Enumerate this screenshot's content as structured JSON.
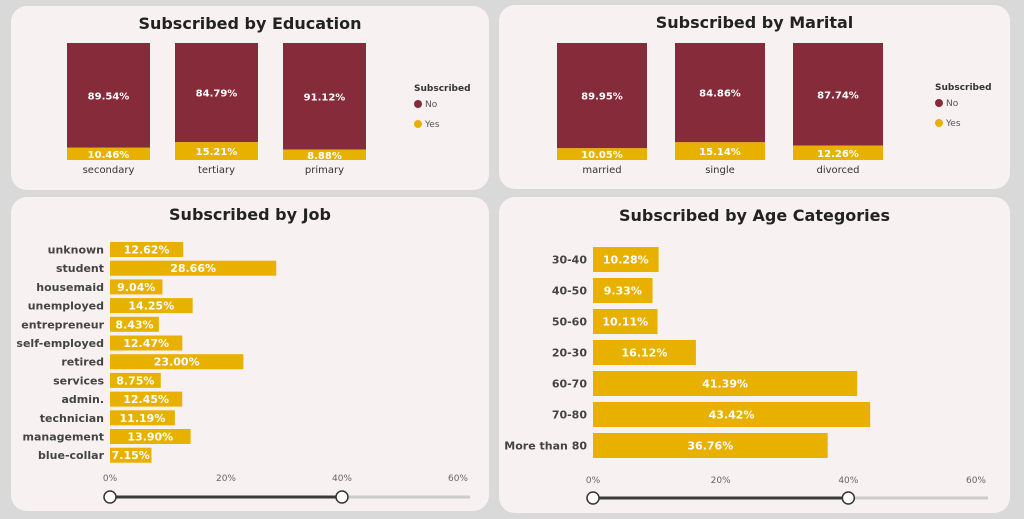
{
  "colors": {
    "no": "#862b3a",
    "yes": "#e8b100",
    "card": "#f8f1f1",
    "track": "#cccccc",
    "track_active": "#3a3a3a"
  },
  "chart_data": [
    {
      "id": "education",
      "type": "bar",
      "stacked": true,
      "normalized": true,
      "title": "Subscribed by Education",
      "categories": [
        "secondary",
        "tertiary",
        "primary"
      ],
      "legend_title": "Subscribed",
      "legend_position": "right",
      "series": [
        {
          "name": "No",
          "values": [
            89.54,
            84.79,
            91.12
          ],
          "labels": [
            "89.54%",
            "84.79%",
            "91.12%"
          ]
        },
        {
          "name": "Yes",
          "values": [
            10.46,
            15.21,
            8.88
          ],
          "labels": [
            "10.46%",
            "15.21%",
            "8.88%"
          ]
        }
      ]
    },
    {
      "id": "marital",
      "type": "bar",
      "stacked": true,
      "normalized": true,
      "title": "Subscribed by Marital",
      "categories": [
        "married",
        "single",
        "divorced"
      ],
      "legend_title": "Subscribed",
      "legend_position": "right",
      "series": [
        {
          "name": "No",
          "values": [
            89.95,
            84.86,
            87.74
          ],
          "labels": [
            "89.95%",
            "84.86%",
            "87.74%"
          ]
        },
        {
          "name": "Yes",
          "values": [
            10.05,
            15.14,
            12.26
          ],
          "labels": [
            "10.05%",
            "15.14%",
            "12.26%"
          ]
        }
      ]
    },
    {
      "id": "job",
      "type": "bar",
      "orientation": "horizontal",
      "title": "Subscribed by Job",
      "categories": [
        "unknown",
        "student",
        "housemaid",
        "unemployed",
        "entrepreneur",
        "self-employed",
        "retired",
        "services",
        "admin.",
        "technician",
        "management",
        "blue-collar"
      ],
      "values": [
        12.62,
        28.66,
        9.04,
        14.25,
        8.43,
        12.47,
        23.0,
        8.75,
        12.45,
        11.19,
        13.9,
        7.15
      ],
      "labels": [
        "12.62%",
        "28.66%",
        "9.04%",
        "14.25%",
        "8.43%",
        "12.47%",
        "23.00%",
        "8.75%",
        "12.45%",
        "11.19%",
        "13.90%",
        "7.15%"
      ],
      "xlim": [
        0,
        60
      ],
      "xticks": [
        0,
        20,
        40,
        60
      ],
      "xtick_labels": [
        "0%",
        "20%",
        "40%",
        "60%"
      ],
      "slider_range": [
        0,
        40
      ]
    },
    {
      "id": "age",
      "type": "bar",
      "orientation": "horizontal",
      "title": "Subscribed by Age Categories",
      "categories": [
        "30-40",
        "40-50",
        "50-60",
        "20-30",
        "60-70",
        "70-80",
        "More than 80"
      ],
      "values": [
        10.28,
        9.33,
        10.11,
        16.12,
        41.39,
        43.42,
        36.76
      ],
      "labels": [
        "10.28%",
        "9.33%",
        "10.11%",
        "16.12%",
        "41.39%",
        "43.42%",
        "36.76%"
      ],
      "xlim": [
        0,
        60
      ],
      "xticks": [
        0,
        20,
        40,
        60
      ],
      "xtick_labels": [
        "0%",
        "20%",
        "40%",
        "60%"
      ],
      "slider_range": [
        0,
        40
      ]
    }
  ]
}
